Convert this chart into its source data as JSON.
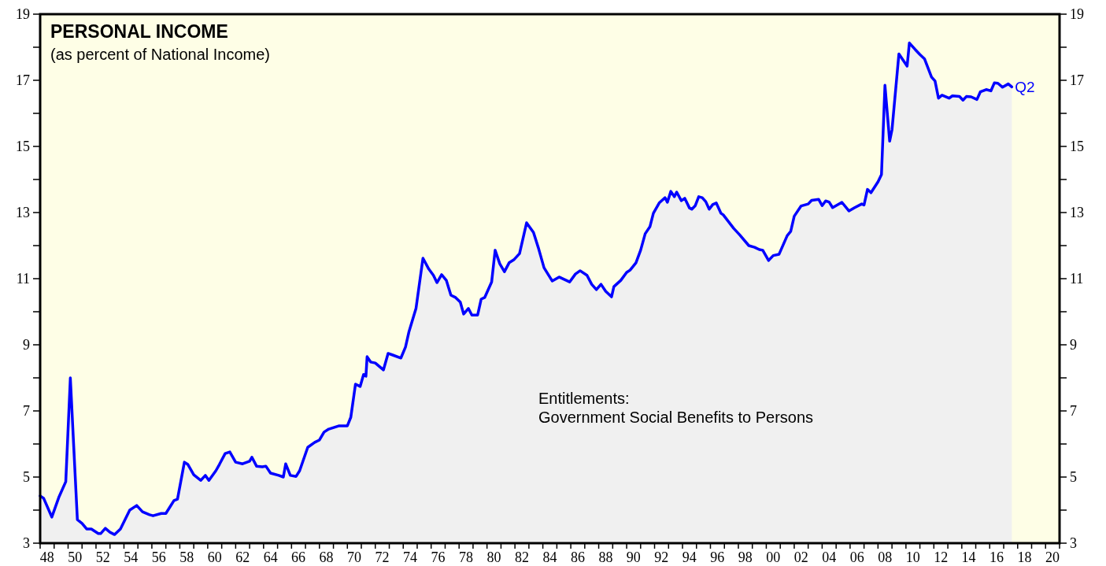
{
  "chart_data": {
    "type": "area",
    "title": "PERSONAL INCOME",
    "subtitle": "(as percent of National Income)",
    "annotations": [
      "Entitlements:\nGovernment Social Benefits to Persons",
      {
        "text": "Q2",
        "x": "2017-08",
        "y": 16.8
      }
    ],
    "series": [
      {
        "color": "#0000ff",
        "x": [
          "1948-01",
          "1948-04",
          "1948-11",
          "1949-05",
          "1949-11",
          "1950-03",
          "1950-07",
          "1950-09",
          "1951-01",
          "1951-05",
          "1951-09",
          "1952-03",
          "1952-05",
          "1952-09",
          "1953-01",
          "1953-05",
          "1953-10",
          "1954-06",
          "1954-12",
          "1955-05",
          "1955-11",
          "1956-02",
          "1956-09",
          "1957-01",
          "1957-05",
          "1957-08",
          "1957-11",
          "1958-05",
          "1958-08",
          "1959-01",
          "1959-07",
          "1959-11",
          "1960-02",
          "1960-08",
          "1960-11",
          "1961-04",
          "1961-08",
          "1962-01",
          "1962-07",
          "1963-01",
          "1963-03",
          "1963-07",
          "1963-12",
          "1964-03",
          "1964-07",
          "1965-02",
          "1965-06",
          "1965-08",
          "1965-12",
          "1966-05",
          "1966-08",
          "1967-03",
          "1967-09",
          "1968-01",
          "1968-05",
          "1968-09",
          "1969-06",
          "1970-01",
          "1970-04",
          "1970-08",
          "1970-12",
          "1971-03",
          "1971-05",
          "1971-06",
          "1971-09",
          "1972-01",
          "1972-08",
          "1972-12",
          "1973-04",
          "1973-11",
          "1974-03",
          "1974-06",
          "1974-12",
          "1975-06",
          "1975-11",
          "1976-03",
          "1976-06",
          "1976-10",
          "1977-02",
          "1977-06",
          "1977-10",
          "1978-02",
          "1978-05",
          "1978-09",
          "1978-12",
          "1979-05",
          "1979-08",
          "1979-11",
          "1980-05",
          "1980-08",
          "1980-12",
          "1981-04",
          "1981-08",
          "1981-12",
          "1982-05",
          "1982-11",
          "1983-05",
          "1983-09",
          "1984-02",
          "1984-09",
          "1985-03",
          "1985-12",
          "1986-05",
          "1986-09",
          "1987-03",
          "1987-07",
          "1987-11",
          "1988-03",
          "1988-07",
          "1988-12",
          "1989-02",
          "1989-08",
          "1990-01",
          "1990-04",
          "1990-09",
          "1991-01",
          "1991-05",
          "1991-09",
          "1991-12",
          "1992-05",
          "1992-10",
          "1992-12",
          "1993-03",
          "1993-06",
          "1993-08",
          "1993-12",
          "1994-03",
          "1994-07",
          "1994-09",
          "1994-12",
          "1995-03",
          "1995-06",
          "1995-09",
          "1995-12",
          "1996-03",
          "1996-06",
          "1996-10",
          "1996-12",
          "1997-09",
          "1998-02",
          "1998-10",
          "1999-03",
          "1999-07",
          "1999-10",
          "2000-03",
          "2000-07",
          "2000-12",
          "2001-07",
          "2001-10",
          "2002-01",
          "2002-07",
          "2003-01",
          "2003-04",
          "2003-10",
          "2004-01",
          "2004-04",
          "2004-07",
          "2004-10",
          "2005-06",
          "2005-12",
          "2006-05",
          "2006-11",
          "2007-01",
          "2007-04",
          "2007-07",
          "2008-01",
          "2008-04",
          "2008-07",
          "2008-11",
          "2009-01",
          "2009-07",
          "2010-02",
          "2010-04",
          "2010-09",
          "2011-01",
          "2011-05",
          "2011-11",
          "2012-02",
          "2012-05",
          "2012-08",
          "2013-02",
          "2013-05",
          "2013-11",
          "2014-02",
          "2014-05",
          "2014-09",
          "2015-02",
          "2015-05",
          "2015-10",
          "2016-02",
          "2016-05",
          "2016-08",
          "2016-12",
          "2017-05",
          "2017-08"
        ],
        "values": [
          4.43,
          4.36,
          3.79,
          4.38,
          4.86,
          8.0,
          5.14,
          3.71,
          3.6,
          3.43,
          3.43,
          3.29,
          3.29,
          3.45,
          3.33,
          3.26,
          3.43,
          4.0,
          4.14,
          3.95,
          3.86,
          3.83,
          3.9,
          3.9,
          4.12,
          4.29,
          4.33,
          5.45,
          5.38,
          5.07,
          4.9,
          5.05,
          4.9,
          5.19,
          5.38,
          5.71,
          5.76,
          5.45,
          5.4,
          5.48,
          5.6,
          5.33,
          5.31,
          5.33,
          5.12,
          5.05,
          5.0,
          5.4,
          5.05,
          5.02,
          5.19,
          5.9,
          6.05,
          6.12,
          6.36,
          6.45,
          6.55,
          6.55,
          6.81,
          7.81,
          7.74,
          8.1,
          8.05,
          8.64,
          8.48,
          8.45,
          8.24,
          8.74,
          8.69,
          8.6,
          8.93,
          9.4,
          10.1,
          11.62,
          11.29,
          11.1,
          10.88,
          11.12,
          10.95,
          10.5,
          10.43,
          10.29,
          9.93,
          10.1,
          9.9,
          9.9,
          10.38,
          10.43,
          10.9,
          11.86,
          11.45,
          11.21,
          11.48,
          11.57,
          11.76,
          12.69,
          12.4,
          11.95,
          11.33,
          10.93,
          11.05,
          10.9,
          11.14,
          11.24,
          11.1,
          10.83,
          10.67,
          10.83,
          10.62,
          10.45,
          10.76,
          10.95,
          11.19,
          11.26,
          11.48,
          11.86,
          12.36,
          12.57,
          12.98,
          13.29,
          13.45,
          13.31,
          13.64,
          13.48,
          13.62,
          13.36,
          13.43,
          13.14,
          13.1,
          13.21,
          13.48,
          13.45,
          13.33,
          13.1,
          13.24,
          13.29,
          12.98,
          12.93,
          12.52,
          12.33,
          12.0,
          11.95,
          11.88,
          11.86,
          11.55,
          11.7,
          11.74,
          12.3,
          12.43,
          12.89,
          13.2,
          13.26,
          13.37,
          13.4,
          13.21,
          13.35,
          13.32,
          13.15,
          13.31,
          13.05,
          13.15,
          13.26,
          13.23,
          13.7,
          13.6,
          13.93,
          14.15,
          16.85,
          15.16,
          15.5,
          17.8,
          17.43,
          18.13,
          17.93,
          17.78,
          17.65,
          17.1,
          16.98,
          16.46,
          16.55,
          16.46,
          16.53,
          16.51,
          16.4,
          16.51,
          16.5,
          16.42,
          16.65,
          16.72,
          16.68,
          16.92,
          16.91,
          16.79,
          16.89,
          16.8
        ]
      }
    ],
    "xlim": [
      "1948-01",
      "2021-01"
    ],
    "xticks": [
      {
        "value": "1948-07",
        "label": "48"
      },
      {
        "value": "1950-07",
        "label": "50"
      },
      {
        "value": "1952-07",
        "label": "52"
      },
      {
        "value": "1954-07",
        "label": "54"
      },
      {
        "value": "1956-07",
        "label": "56"
      },
      {
        "value": "1958-07",
        "label": "58"
      },
      {
        "value": "1960-07",
        "label": "60"
      },
      {
        "value": "1962-07",
        "label": "62"
      },
      {
        "value": "1964-07",
        "label": "64"
      },
      {
        "value": "1966-07",
        "label": "66"
      },
      {
        "value": "1968-07",
        "label": "68"
      },
      {
        "value": "1970-07",
        "label": "70"
      },
      {
        "value": "1972-07",
        "label": "72"
      },
      {
        "value": "1974-07",
        "label": "74"
      },
      {
        "value": "1976-07",
        "label": "76"
      },
      {
        "value": "1978-07",
        "label": "78"
      },
      {
        "value": "1980-07",
        "label": "80"
      },
      {
        "value": "1982-07",
        "label": "82"
      },
      {
        "value": "1984-07",
        "label": "84"
      },
      {
        "value": "1986-07",
        "label": "86"
      },
      {
        "value": "1988-07",
        "label": "88"
      },
      {
        "value": "1990-07",
        "label": "90"
      },
      {
        "value": "1992-07",
        "label": "92"
      },
      {
        "value": "1994-07",
        "label": "94"
      },
      {
        "value": "1996-07",
        "label": "96"
      },
      {
        "value": "1998-07",
        "label": "98"
      },
      {
        "value": "2000-07",
        "label": "00"
      },
      {
        "value": "2002-07",
        "label": "02"
      },
      {
        "value": "2004-07",
        "label": "04"
      },
      {
        "value": "2006-07",
        "label": "06"
      },
      {
        "value": "2008-07",
        "label": "08"
      },
      {
        "value": "2010-07",
        "label": "10"
      },
      {
        "value": "2012-07",
        "label": "12"
      },
      {
        "value": "2014-07",
        "label": "14"
      },
      {
        "value": "2016-07",
        "label": "16"
      },
      {
        "value": "2018-07",
        "label": "18"
      },
      {
        "value": "2020-07",
        "label": "20"
      },
      {
        "value": "1948-01",
        "label": null
      },
      {
        "value": "1949-01",
        "label": null
      },
      {
        "value": "1950-01",
        "label": null
      },
      {
        "value": "1951-01",
        "label": null
      },
      {
        "value": "1952-01",
        "label": null
      },
      {
        "value": "1953-01",
        "label": null
      },
      {
        "value": "1954-01",
        "label": null
      },
      {
        "value": "1955-01",
        "label": null
      },
      {
        "value": "1956-01",
        "label": null
      },
      {
        "value": "1957-01",
        "label": null
      },
      {
        "value": "1958-01",
        "label": null
      },
      {
        "value": "1959-01",
        "label": null
      },
      {
        "value": "1960-01",
        "label": null
      },
      {
        "value": "1961-01",
        "label": null
      },
      {
        "value": "1962-01",
        "label": null
      },
      {
        "value": "1963-01",
        "label": null
      },
      {
        "value": "1964-01",
        "label": null
      },
      {
        "value": "1965-01",
        "label": null
      },
      {
        "value": "1966-01",
        "label": null
      },
      {
        "value": "1967-01",
        "label": null
      },
      {
        "value": "1968-01",
        "label": null
      },
      {
        "value": "1969-01",
        "label": null
      },
      {
        "value": "1970-01",
        "label": null
      },
      {
        "value": "1971-01",
        "label": null
      },
      {
        "value": "1972-01",
        "label": null
      },
      {
        "value": "1973-01",
        "label": null
      },
      {
        "value": "1974-01",
        "label": null
      },
      {
        "value": "1975-01",
        "label": null
      },
      {
        "value": "1976-01",
        "label": null
      },
      {
        "value": "1977-01",
        "label": null
      },
      {
        "value": "1978-01",
        "label": null
      },
      {
        "value": "1979-01",
        "label": null
      },
      {
        "value": "1980-01",
        "label": null
      },
      {
        "value": "1981-01",
        "label": null
      },
      {
        "value": "1982-01",
        "label": null
      },
      {
        "value": "1983-01",
        "label": null
      },
      {
        "value": "1984-01",
        "label": null
      },
      {
        "value": "1985-01",
        "label": null
      },
      {
        "value": "1986-01",
        "label": null
      },
      {
        "value": "1987-01",
        "label": null
      },
      {
        "value": "1988-01",
        "label": null
      },
      {
        "value": "1989-01",
        "label": null
      },
      {
        "value": "1990-01",
        "label": null
      },
      {
        "value": "1991-01",
        "label": null
      },
      {
        "value": "1992-01",
        "label": null
      },
      {
        "value": "1993-01",
        "label": null
      },
      {
        "value": "1994-01",
        "label": null
      },
      {
        "value": "1995-01",
        "label": null
      },
      {
        "value": "1996-01",
        "label": null
      },
      {
        "value": "1997-01",
        "label": null
      },
      {
        "value": "1998-01",
        "label": null
      },
      {
        "value": "1999-01",
        "label": null
      },
      {
        "value": "2000-01",
        "label": null
      },
      {
        "value": "2001-01",
        "label": null
      },
      {
        "value": "2002-01",
        "label": null
      },
      {
        "value": "2003-01",
        "label": null
      },
      {
        "value": "2004-01",
        "label": null
      },
      {
        "value": "2005-01",
        "label": null
      },
      {
        "value": "2006-01",
        "label": null
      },
      {
        "value": "2007-01",
        "label": null
      },
      {
        "value": "2008-01",
        "label": null
      },
      {
        "value": "2009-01",
        "label": null
      },
      {
        "value": "2010-01",
        "label": null
      },
      {
        "value": "2011-01",
        "label": null
      },
      {
        "value": "2012-01",
        "label": null
      },
      {
        "value": "2013-01",
        "label": null
      },
      {
        "value": "2014-01",
        "label": null
      },
      {
        "value": "2015-01",
        "label": null
      },
      {
        "value": "2016-01",
        "label": null
      },
      {
        "value": "2017-01",
        "label": null
      },
      {
        "value": "2018-01",
        "label": null
      },
      {
        "value": "2019-01",
        "label": null
      },
      {
        "value": "2020-01",
        "label": null
      },
      {
        "value": "2021-01",
        "label": null
      }
    ],
    "ylim": [
      3,
      19
    ],
    "yticks": [
      3,
      {
        "value": 4,
        "label": null
      },
      5,
      {
        "value": 6,
        "label": null
      },
      7,
      {
        "value": 8,
        "label": null
      },
      9,
      {
        "value": 10,
        "label": null
      },
      11,
      {
        "value": 12,
        "label": null
      },
      13,
      {
        "value": 14,
        "label": null
      },
      15,
      {
        "value": 16,
        "label": null
      },
      17,
      {
        "value": 18,
        "label": null
      },
      19
    ],
    "y2lim": [
      3,
      19
    ],
    "y2ticks": [
      3,
      {
        "value": 4,
        "label": null
      },
      5,
      {
        "value": 6,
        "label": null
      },
      7,
      {
        "value": 8,
        "label": null
      },
      9,
      {
        "value": 10,
        "label": null
      },
      11,
      {
        "value": 12,
        "label": null
      },
      13,
      {
        "value": 14,
        "label": null
      },
      15,
      {
        "value": 16,
        "label": null
      },
      17,
      {
        "value": 18,
        "label": null
      },
      19
    ],
    "grid": false
  }
}
